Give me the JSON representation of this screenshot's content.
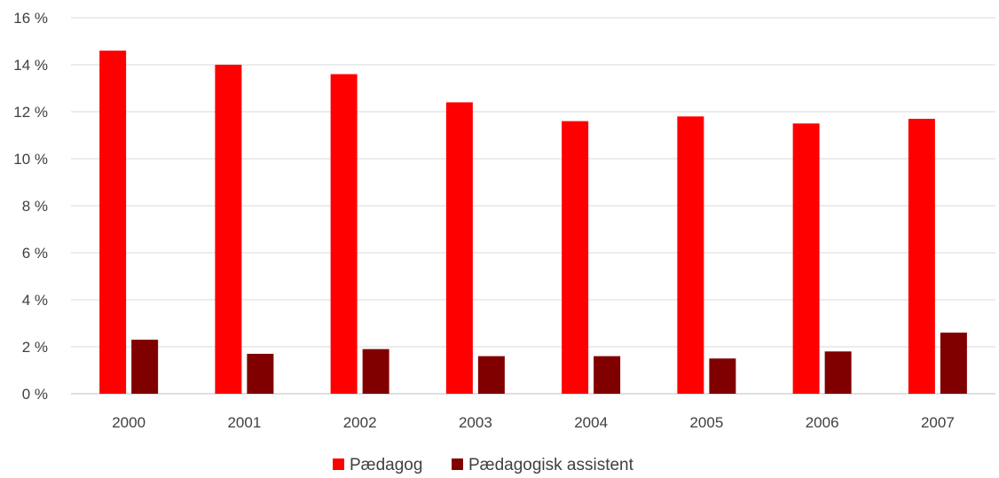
{
  "chart_data": {
    "type": "bar",
    "categories": [
      "2000",
      "2001",
      "2002",
      "2003",
      "2004",
      "2005",
      "2006",
      "2007"
    ],
    "series": [
      {
        "name": "Pædagog",
        "values": [
          14.6,
          14.0,
          13.6,
          12.4,
          11.6,
          11.8,
          11.5,
          11.7
        ],
        "color": "#ff0000"
      },
      {
        "name": "Pædagogisk assistent",
        "values": [
          2.3,
          1.7,
          1.9,
          1.6,
          1.6,
          1.5,
          1.8,
          2.6
        ],
        "color": "#800000"
      }
    ],
    "y_ticks": [
      "0 %",
      "2 %",
      "4 %",
      "6 %",
      "8 %",
      "10 %",
      "12 %",
      "14 %",
      "16 %"
    ],
    "ylim": [
      0,
      16
    ],
    "y_step": 2,
    "grid": true,
    "legend_position": "bottom",
    "title": "",
    "xlabel": "",
    "ylabel": ""
  }
}
